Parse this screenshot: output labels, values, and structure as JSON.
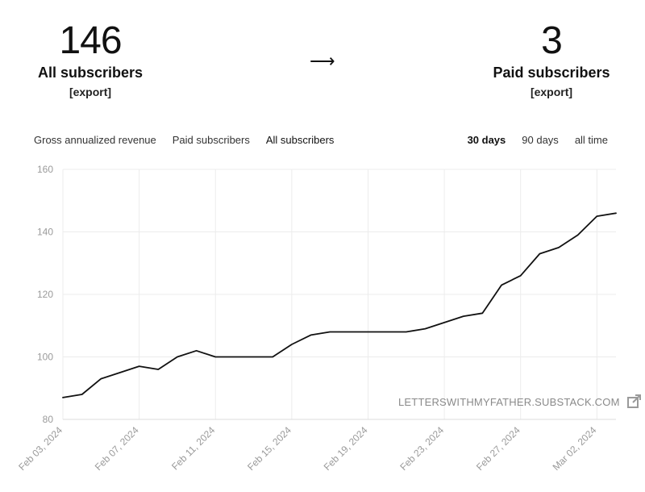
{
  "summary": {
    "left": {
      "number": "146",
      "label": "All subscribers",
      "export": "[export]"
    },
    "arrow": "⟶",
    "right": {
      "number": "3",
      "label": "Paid subscribers",
      "export": "[export]"
    }
  },
  "tabs": [
    {
      "label": "Gross annualized revenue",
      "active": false
    },
    {
      "label": "Paid subscribers",
      "active": false
    },
    {
      "label": "All subscribers",
      "active": true
    }
  ],
  "ranges": [
    {
      "label": "30 days",
      "active": true
    },
    {
      "label": "90 days",
      "active": false
    },
    {
      "label": "all time",
      "active": false
    }
  ],
  "watermark": {
    "text": "LETTERSWITHMYFATHER.SUBSTACK.COM",
    "icon": "external-link-icon"
  },
  "chart_data": {
    "type": "line",
    "x": [
      "2024-02-03",
      "2024-02-04",
      "2024-02-05",
      "2024-02-06",
      "2024-02-07",
      "2024-02-08",
      "2024-02-09",
      "2024-02-10",
      "2024-02-11",
      "2024-02-12",
      "2024-02-13",
      "2024-02-14",
      "2024-02-15",
      "2024-02-16",
      "2024-02-17",
      "2024-02-18",
      "2024-02-19",
      "2024-02-20",
      "2024-02-21",
      "2024-02-22",
      "2024-02-23",
      "2024-02-24",
      "2024-02-25",
      "2024-02-26",
      "2024-02-27",
      "2024-02-28",
      "2024-02-29",
      "2024-03-01",
      "2024-03-02",
      "2024-03-03"
    ],
    "series": [
      {
        "values": [
          87,
          88,
          93,
          95,
          97,
          96,
          100,
          102,
          100,
          100,
          100,
          100,
          104,
          107,
          108,
          108,
          108,
          108,
          108,
          109,
          111,
          113,
          114,
          123,
          126,
          133,
          135,
          139,
          145,
          146
        ]
      }
    ],
    "ylim": [
      80,
      160
    ],
    "yticks": [
      80,
      100,
      120,
      140,
      160
    ],
    "xtick_labels": [
      "Feb 03, 2024",
      "Feb 07, 2024",
      "Feb 11, 2024",
      "Feb 15, 2024",
      "Feb 19, 2024",
      "Feb 23, 2024",
      "Feb 27, 2024",
      "Mar 02, 2024"
    ],
    "xtick_dates": [
      "2024-02-03",
      "2024-02-07",
      "2024-02-11",
      "2024-02-15",
      "2024-02-19",
      "2024-02-23",
      "2024-02-27",
      "2024-03-02"
    ],
    "grid": true,
    "line_color": "#111111",
    "grid_color": "#ececec",
    "axis_label_color": "#9a9a9a"
  }
}
